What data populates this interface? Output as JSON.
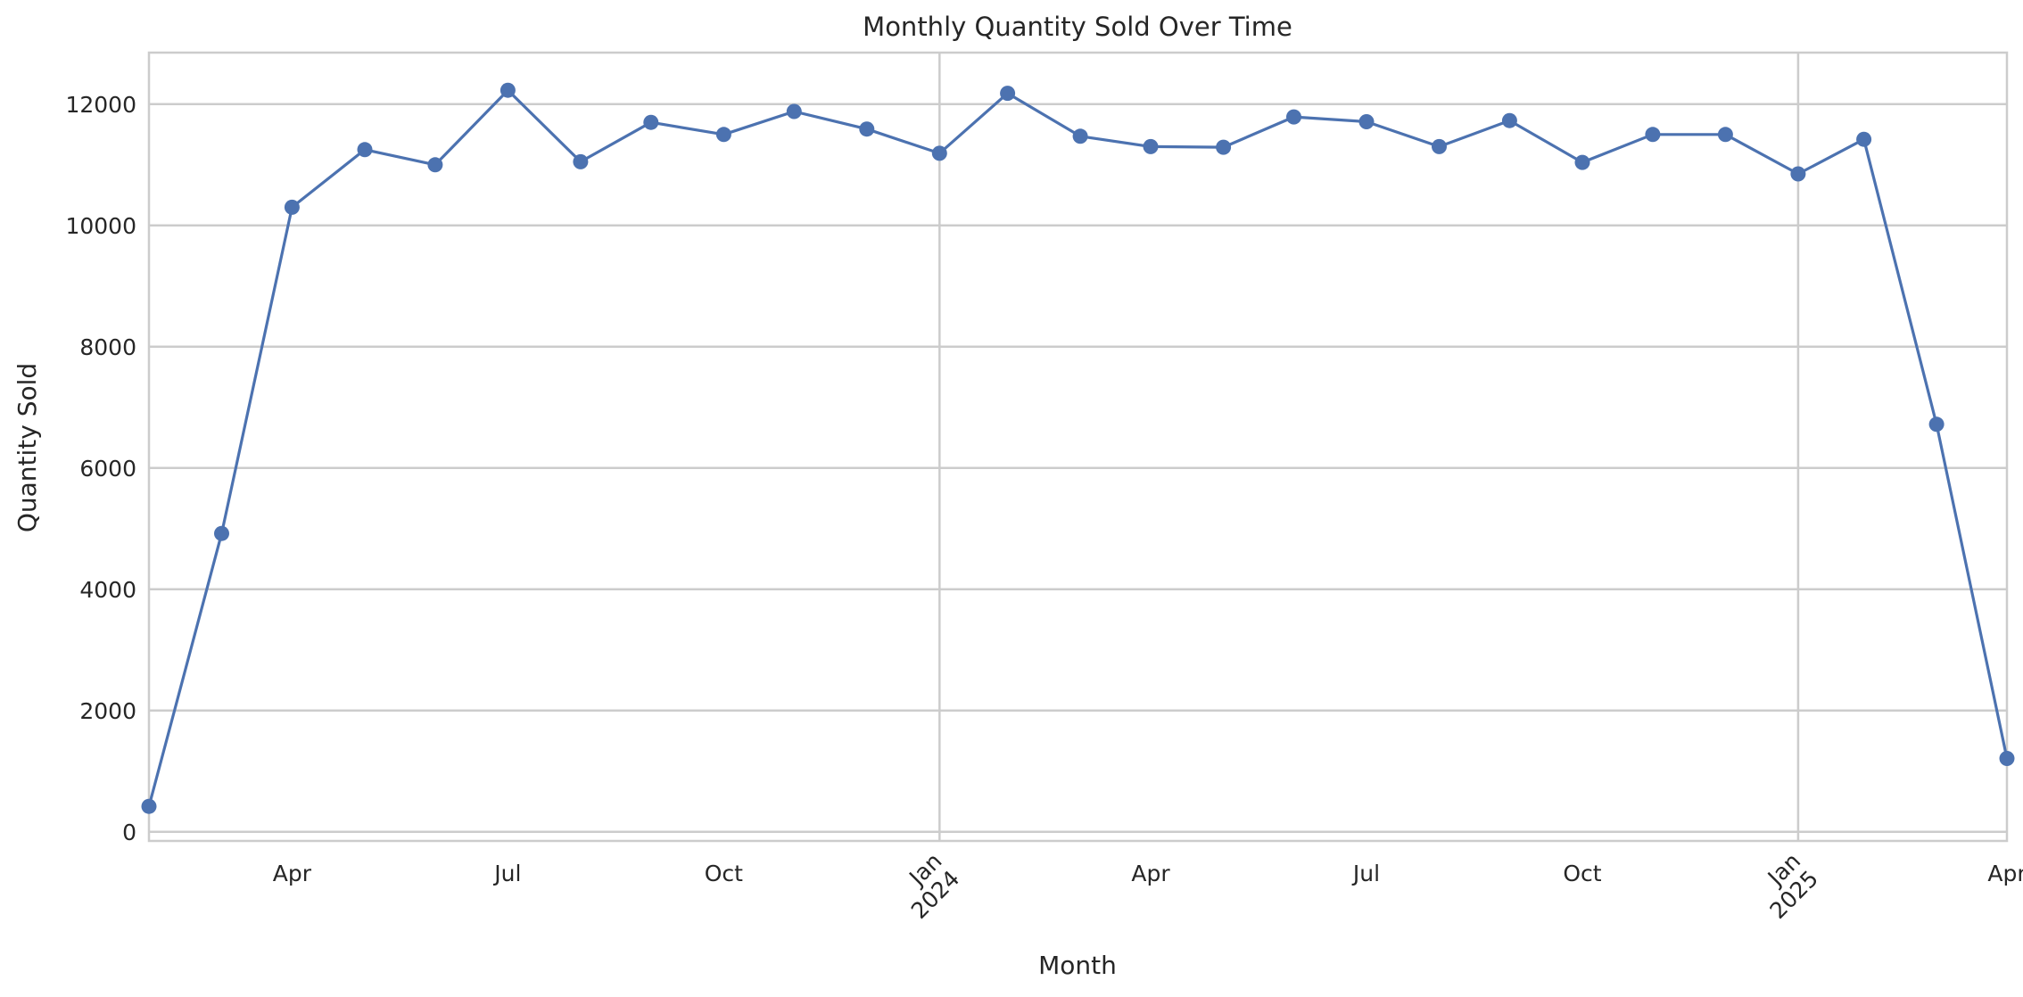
{
  "chart_data": {
    "type": "line",
    "title": "Monthly Quantity Sold Over Time",
    "xlabel": "Month",
    "ylabel": "Quantity Sold",
    "ylim": [
      -150,
      12850
    ],
    "xlim": [
      "2023-02-28",
      "2025-04-30"
    ],
    "grid": true,
    "legend": "none",
    "y_ticks": [
      0,
      2000,
      4000,
      6000,
      8000,
      10000,
      12000
    ],
    "x_ticks": [
      {
        "date": "2023-04-30",
        "label": "Apr",
        "sub": ""
      },
      {
        "date": "2023-07-31",
        "label": "Jul",
        "sub": ""
      },
      {
        "date": "2023-10-31",
        "label": "Oct",
        "sub": ""
      },
      {
        "date": "2024-01-31",
        "label": "Jan",
        "sub": "2024"
      },
      {
        "date": "2024-04-30",
        "label": "Apr",
        "sub": ""
      },
      {
        "date": "2024-07-31",
        "label": "Jul",
        "sub": ""
      },
      {
        "date": "2024-10-31",
        "label": "Oct",
        "sub": ""
      },
      {
        "date": "2025-01-31",
        "label": "Jan",
        "sub": "2025"
      },
      {
        "date": "2025-04-30",
        "label": "Apr",
        "sub": ""
      }
    ],
    "series": [
      {
        "color": "#4c72b0",
        "x": [
          "2023-02-28",
          "2023-03-31",
          "2023-04-30",
          "2023-05-31",
          "2023-06-30",
          "2023-07-31",
          "2023-08-31",
          "2023-09-30",
          "2023-10-31",
          "2023-11-30",
          "2023-12-31",
          "2024-01-31",
          "2024-02-29",
          "2024-03-31",
          "2024-04-30",
          "2024-05-31",
          "2024-06-30",
          "2024-07-31",
          "2024-08-31",
          "2024-09-30",
          "2024-10-31",
          "2024-11-30",
          "2024-12-31",
          "2025-01-31",
          "2025-02-28",
          "2025-03-31",
          "2025-04-30"
        ],
        "values": [
          420,
          4920,
          10300,
          11250,
          11000,
          12230,
          11050,
          11700,
          11500,
          11880,
          11590,
          11190,
          12180,
          11470,
          11300,
          11290,
          11790,
          11710,
          11300,
          11730,
          11040,
          11500,
          11500,
          10850,
          11420,
          6720,
          1210
        ]
      }
    ]
  }
}
